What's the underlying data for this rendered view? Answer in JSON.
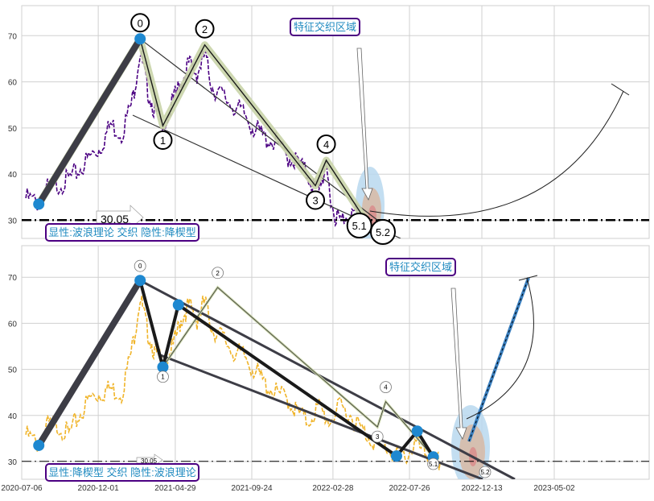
{
  "chart_data": [
    {
      "type": "line",
      "panel": "top",
      "ylim": [
        26,
        77
      ],
      "yticks": [
        30,
        40,
        50,
        60,
        70
      ],
      "grid": true,
      "colors": {
        "price": "#4b0082",
        "wave": "#c9d4a8",
        "marker": "#1e88d0",
        "box_border": "#4b0082",
        "box_text": "#1f8ac0"
      },
      "reference_line": {
        "value": 30.05,
        "label": "30.05"
      },
      "wave_labels": [
        {
          "label": "0",
          "x": "2021-02-20",
          "y": 69.3
        },
        {
          "label": "1",
          "x": "2021-04-05",
          "y": 50.5
        },
        {
          "label": "2",
          "x": "2021-06-25",
          "y": 68
        },
        {
          "label": "3",
          "x": "2022-01-25",
          "y": 37.5
        },
        {
          "label": "4",
          "x": "2022-02-15",
          "y": 43
        },
        {
          "label": "5.1",
          "x": "2022-04-20",
          "y": 31
        },
        {
          "label": "5.2",
          "x": "2022-05-20",
          "y": 28
        }
      ],
      "wave_path": [
        {
          "x": "2020-08-08",
          "y": 33.5
        },
        {
          "x": "2021-02-20",
          "y": 69.3
        },
        {
          "x": "2021-04-05",
          "y": 50.5
        },
        {
          "x": "2021-06-25",
          "y": 68
        },
        {
          "x": "2022-01-25",
          "y": 37.5
        },
        {
          "x": "2022-02-15",
          "y": 43
        },
        {
          "x": "2022-05-05",
          "y": 29.5
        }
      ],
      "markers": [
        {
          "x": "2020-08-08",
          "y": 33.5
        },
        {
          "x": "2021-02-20",
          "y": 69.3
        }
      ],
      "price_series": [
        [
          "2020-07-14",
          36
        ],
        [
          "2020-08-05",
          35
        ],
        [
          "2020-08-25",
          38
        ],
        [
          "2020-09-15",
          39
        ],
        [
          "2020-10-05",
          40
        ],
        [
          "2020-10-25",
          42
        ],
        [
          "2020-11-15",
          45
        ],
        [
          "2020-12-05",
          47
        ],
        [
          "2020-12-25",
          52
        ],
        [
          "2021-01-15",
          50
        ],
        [
          "2021-02-05",
          57
        ],
        [
          "2021-02-20",
          68
        ],
        [
          "2021-03-05",
          60
        ],
        [
          "2021-03-20",
          55
        ],
        [
          "2021-04-05",
          51
        ],
        [
          "2021-04-25",
          57
        ],
        [
          "2021-05-10",
          61
        ],
        [
          "2021-05-25",
          65
        ],
        [
          "2021-06-10",
          63
        ],
        [
          "2021-06-25",
          67
        ],
        [
          "2021-07-10",
          60
        ],
        [
          "2021-07-30",
          58
        ],
        [
          "2021-08-20",
          56
        ],
        [
          "2021-09-10",
          54
        ],
        [
          "2021-09-30",
          51
        ],
        [
          "2021-10-20",
          49
        ],
        [
          "2021-11-10",
          48
        ],
        [
          "2021-12-01",
          45
        ],
        [
          "2021-12-20",
          44
        ],
        [
          "2022-01-10",
          41
        ],
        [
          "2022-01-25",
          38
        ],
        [
          "2022-02-05",
          40
        ],
        [
          "2022-02-15",
          42
        ],
        [
          "2022-03-01",
          33
        ],
        [
          "2022-03-15",
          31
        ],
        [
          "2022-04-01",
          33
        ],
        [
          "2022-04-20",
          32
        ],
        [
          "2022-05-05",
          30
        ]
      ],
      "annotations": [
        {
          "text": "特征交织区域"
        },
        {
          "text": "显性:波浪理论 交织 隐性:降楔型"
        }
      ]
    },
    {
      "type": "line",
      "panel": "bottom",
      "ylim": [
        26,
        76
      ],
      "yticks": [
        30,
        40,
        50,
        60,
        70
      ],
      "grid": true,
      "xtick_labels": [
        "2020-07-06",
        "2020-12-01",
        "2021-04-29",
        "2021-09-24",
        "2022-02-28",
        "2022-07-26",
        "2022-12-13",
        "2023-05-02"
      ],
      "colors": {
        "price": "#f0b429",
        "wave": "#1a1a1a",
        "marker": "#1e88d0",
        "forecast": "#3a7fbf",
        "box_border": "#4b0082",
        "box_text": "#1f8ac0"
      },
      "reference_line": {
        "value": 30.05,
        "label": "30.05"
      },
      "wave_labels": [
        {
          "label": "0",
          "x": "2021-02-20",
          "y": 69.3
        },
        {
          "label": "1",
          "x": "2021-04-05",
          "y": 50.5
        },
        {
          "label": "2",
          "x": "2021-07-20",
          "y": 67.8
        },
        {
          "label": "3",
          "x": "2022-05-25",
          "y": 37.5
        },
        {
          "label": "4",
          "x": "2022-06-10",
          "y": 43
        },
        {
          "label": "5.1",
          "x": "2022-09-10",
          "y": 31
        },
        {
          "label": "5.2",
          "x": "2022-10-25",
          "y": 30
        }
      ],
      "wave_path": [
        {
          "x": "2020-08-08",
          "y": 33.5
        },
        {
          "x": "2021-02-20",
          "y": 69.3
        },
        {
          "x": "2021-04-05",
          "y": 50.5
        },
        {
          "x": "2021-05-05",
          "y": 64
        },
        {
          "x": "2022-07-01",
          "y": 31.2
        },
        {
          "x": "2022-08-10",
          "y": 36.6
        },
        {
          "x": "2022-09-10",
          "y": 31
        }
      ],
      "markers": [
        {
          "x": "2020-08-08",
          "y": 33.5
        },
        {
          "x": "2021-02-20",
          "y": 69.3
        },
        {
          "x": "2021-04-05",
          "y": 50.5
        },
        {
          "x": "2021-05-05",
          "y": 64
        },
        {
          "x": "2022-07-01",
          "y": 31.2
        },
        {
          "x": "2022-08-10",
          "y": 36.6
        },
        {
          "x": "2022-09-10",
          "y": 31
        }
      ],
      "price_series": [
        [
          "2020-07-14",
          37
        ],
        [
          "2020-08-05",
          35
        ],
        [
          "2020-08-25",
          39
        ],
        [
          "2020-09-15",
          39
        ],
        [
          "2020-10-05",
          37
        ],
        [
          "2020-10-25",
          41
        ],
        [
          "2020-11-15",
          45
        ],
        [
          "2020-12-05",
          46
        ],
        [
          "2020-12-25",
          47
        ],
        [
          "2021-01-15",
          46
        ],
        [
          "2021-02-05",
          56
        ],
        [
          "2021-02-20",
          67
        ],
        [
          "2021-03-05",
          60
        ],
        [
          "2021-03-20",
          55
        ],
        [
          "2021-04-05",
          52
        ],
        [
          "2021-04-25",
          56
        ],
        [
          "2021-05-10",
          62
        ],
        [
          "2021-05-25",
          65
        ],
        [
          "2021-06-10",
          62
        ],
        [
          "2021-06-25",
          66
        ],
        [
          "2021-07-10",
          60
        ],
        [
          "2021-07-30",
          58
        ],
        [
          "2021-08-20",
          55
        ],
        [
          "2021-09-10",
          54
        ],
        [
          "2021-09-30",
          51
        ],
        [
          "2021-10-20",
          48
        ],
        [
          "2021-11-10",
          46
        ],
        [
          "2021-12-01",
          45
        ],
        [
          "2021-12-20",
          42
        ],
        [
          "2022-01-10",
          40
        ],
        [
          "2022-02-01",
          43
        ],
        [
          "2022-02-20",
          40
        ],
        [
          "2022-03-15",
          43
        ],
        [
          "2022-04-05",
          41
        ],
        [
          "2022-04-25",
          38
        ],
        [
          "2022-05-15",
          36
        ],
        [
          "2022-06-05",
          35
        ],
        [
          "2022-06-25",
          33
        ],
        [
          "2022-07-15",
          32
        ],
        [
          "2022-08-05",
          35
        ],
        [
          "2022-08-25",
          33
        ],
        [
          "2022-09-10",
          31
        ],
        [
          "2022-09-25",
          31
        ]
      ],
      "annotations": [
        {
          "text": "特征交织区域"
        },
        {
          "text": "显性:降楔型 交织 隐性:波浪理论"
        }
      ]
    }
  ]
}
